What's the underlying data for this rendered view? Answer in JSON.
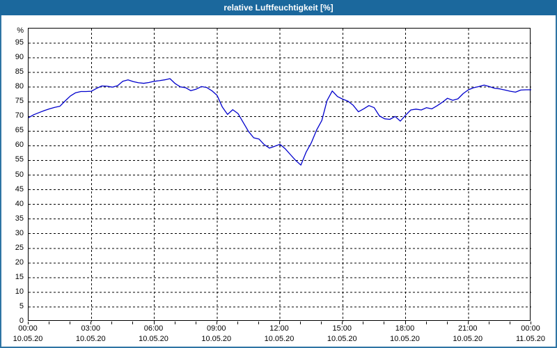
{
  "window": {
    "title": "relative Luftfeuchtigkeit [%]"
  },
  "theme": {
    "title_bar_color": "#1B689D",
    "window_border_color": "#2E74A4",
    "background_color": "#FFFFFF",
    "line_color": "#0000CC",
    "grid_color": "#000000",
    "text_color": "#000000"
  },
  "chart_data": {
    "type": "line",
    "title": "relative Luftfeuchtigkeit [%]",
    "ylabel": "%",
    "y_unit_label": "%",
    "ylim": [
      0,
      100
    ],
    "y_ticks": [
      0,
      5,
      10,
      15,
      20,
      25,
      30,
      35,
      40,
      45,
      50,
      55,
      60,
      65,
      70,
      75,
      80,
      85,
      90,
      95
    ],
    "grid": "dashed",
    "legend": "none",
    "x_range_hours": [
      0,
      24
    ],
    "x_minor_tick_hours": 1,
    "x_ticks": [
      {
        "hour": 0,
        "label": "00:00",
        "date": "10.05.20"
      },
      {
        "hour": 3,
        "label": "03:00",
        "date": "10.05.20"
      },
      {
        "hour": 6,
        "label": "06:00",
        "date": "10.05.20"
      },
      {
        "hour": 9,
        "label": "09:00",
        "date": "10.05.20"
      },
      {
        "hour": 12,
        "label": "12:00",
        "date": "10.05.20"
      },
      {
        "hour": 15,
        "label": "15:00",
        "date": "10.05.20"
      },
      {
        "hour": 18,
        "label": "18:00",
        "date": "10.05.20"
      },
      {
        "hour": 21,
        "label": "21:00",
        "date": "10.05.20"
      },
      {
        "hour": 24,
        "label": "00:00",
        "date": "11.05.20"
      }
    ],
    "series": [
      {
        "name": "relative Luftfeuchtigkeit",
        "unit": "%",
        "points": [
          [
            0,
            69.6
          ],
          [
            0.25,
            70.6
          ],
          [
            0.5,
            71.3
          ],
          [
            0.75,
            72
          ],
          [
            1,
            72.6
          ],
          [
            1.25,
            73.1
          ],
          [
            1.5,
            73.5
          ],
          [
            1.75,
            75.3
          ],
          [
            2,
            77
          ],
          [
            2.25,
            78.1
          ],
          [
            2.5,
            78.5
          ],
          [
            2.75,
            78.5
          ],
          [
            3,
            78.6
          ],
          [
            3.25,
            79.6
          ],
          [
            3.5,
            80.4
          ],
          [
            3.75,
            80.3
          ],
          [
            4,
            80
          ],
          [
            4.25,
            80.5
          ],
          [
            4.5,
            82
          ],
          [
            4.75,
            82.5
          ],
          [
            5,
            81.9
          ],
          [
            5.25,
            81.5
          ],
          [
            5.5,
            81.3
          ],
          [
            5.75,
            81.6
          ],
          [
            6,
            82
          ],
          [
            6.25,
            82.2
          ],
          [
            6.5,
            82.5
          ],
          [
            6.75,
            82.9
          ],
          [
            7,
            81.2
          ],
          [
            7.25,
            80.1
          ],
          [
            7.5,
            79.8
          ],
          [
            7.75,
            78.8
          ],
          [
            8,
            79.3
          ],
          [
            8.25,
            80.2
          ],
          [
            8.5,
            79.9
          ],
          [
            8.75,
            78.8
          ],
          [
            9,
            77.2
          ],
          [
            9.25,
            73.2
          ],
          [
            9.5,
            70.7
          ],
          [
            9.75,
            72.3
          ],
          [
            10,
            71
          ],
          [
            10.25,
            67.9
          ],
          [
            10.5,
            64.9
          ],
          [
            10.75,
            62.7
          ],
          [
            11,
            62.3
          ],
          [
            11.25,
            60.4
          ],
          [
            11.5,
            59.2
          ],
          [
            11.75,
            59.8
          ],
          [
            12,
            60.5
          ],
          [
            12.25,
            59
          ],
          [
            12.5,
            57
          ],
          [
            12.75,
            55
          ],
          [
            13,
            53.4
          ],
          [
            13.25,
            57.8
          ],
          [
            13.5,
            61
          ],
          [
            13.75,
            65.3
          ],
          [
            14,
            68.6
          ],
          [
            14.25,
            75.4
          ],
          [
            14.5,
            78.7
          ],
          [
            14.75,
            76.8
          ],
          [
            15,
            75.9
          ],
          [
            15.25,
            75.2
          ],
          [
            15.5,
            73.8
          ],
          [
            15.75,
            71.6
          ],
          [
            16,
            72.6
          ],
          [
            16.25,
            73.7
          ],
          [
            16.5,
            73
          ],
          [
            16.75,
            70.2
          ],
          [
            17,
            69.2
          ],
          [
            17.25,
            69
          ],
          [
            17.5,
            70
          ],
          [
            17.75,
            68.4
          ],
          [
            18,
            70.4
          ],
          [
            18.25,
            72.2
          ],
          [
            18.5,
            72.5
          ],
          [
            18.75,
            72.2
          ],
          [
            19,
            73
          ],
          [
            19.25,
            72.6
          ],
          [
            19.5,
            73.6
          ],
          [
            19.75,
            74.8
          ],
          [
            20,
            76.2
          ],
          [
            20.25,
            75.5
          ],
          [
            20.5,
            76
          ],
          [
            20.75,
            77.8
          ],
          [
            21,
            79.1
          ],
          [
            21.25,
            79.8
          ],
          [
            21.5,
            80.2
          ],
          [
            21.75,
            80.7
          ],
          [
            22,
            80.2
          ],
          [
            22.25,
            79.6
          ],
          [
            22.5,
            79.4
          ],
          [
            22.75,
            79
          ],
          [
            23,
            78.6
          ],
          [
            23.25,
            78.3
          ],
          [
            23.5,
            79
          ],
          [
            23.75,
            79.1
          ],
          [
            24,
            79.1
          ]
        ]
      }
    ]
  }
}
